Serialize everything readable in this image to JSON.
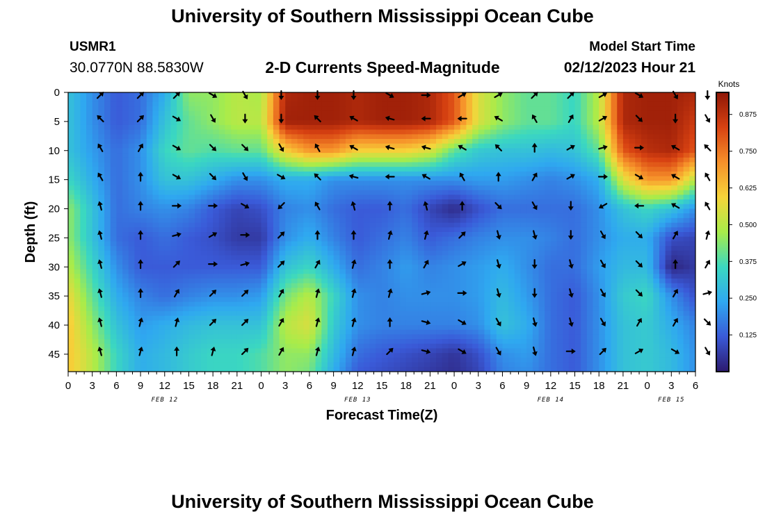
{
  "page": {
    "title": "University of Southern Mississippi Ocean Cube",
    "footer_title": "University of Southern Mississippi Ocean Cube",
    "station_id": "USMR1",
    "station_coords": "30.0770N  88.5830W",
    "subtitle": "2-D Currents Speed-Magnitude",
    "model_start_label": "Model Start Time",
    "model_start_value": "02/12/2023 Hour 21"
  },
  "chart_data": {
    "type": "heatmap",
    "title": "2-D Currents Speed-Magnitude",
    "xlabel": "Forecast Time(Z)",
    "ylabel": "Depth (ft)",
    "colorbar_label": "Knots",
    "x_tick_labels": [
      "0",
      "3",
      "6",
      "9",
      "12",
      "15",
      "18",
      "21",
      "0",
      "3",
      "6",
      "9",
      "12",
      "15",
      "18",
      "21",
      "0",
      "3",
      "6",
      "9",
      "12",
      "15",
      "18",
      "21",
      "0",
      "3",
      "6"
    ],
    "date_labels": [
      {
        "label": "FEB 12",
        "x": 12
      },
      {
        "label": "FEB 13",
        "x": 36
      },
      {
        "label": "FEB 14",
        "x": 60
      },
      {
        "label": "FEB 15",
        "x": 75
      }
    ],
    "y_ticks": [
      0,
      5,
      10,
      15,
      20,
      25,
      30,
      35,
      40,
      45
    ],
    "ylim": [
      48,
      0
    ],
    "xlim": [
      0,
      78
    ],
    "colorbar_ticks": [
      0.125,
      0.25,
      0.375,
      0.5,
      0.625,
      0.75,
      0.875
    ],
    "colorbar_range": [
      0,
      0.95
    ],
    "colors": [
      "#2c1a6e",
      "#3a5ad8",
      "#2fa8f0",
      "#3bd8c0",
      "#a8ec4a",
      "#f6d43a",
      "#f6902a",
      "#d84212",
      "#8e1606"
    ],
    "arrow_times": [
      4,
      9,
      13.5,
      18,
      22,
      26.5,
      31,
      35.5,
      40,
      44.5,
      49,
      53.5,
      58,
      62.5,
      66.5,
      71,
      75.5,
      79.5
    ],
    "arrow_depths": [
      0,
      4.5,
      9.5,
      14.5,
      19.5,
      24.5,
      29.5,
      34.5,
      39.5,
      44.5
    ],
    "cell_times": [
      0,
      3,
      6,
      9,
      12,
      15,
      18,
      21,
      24,
      27,
      30,
      33,
      36,
      39,
      42,
      45,
      48,
      51,
      54,
      57,
      60,
      63,
      66,
      69,
      72,
      75,
      78
    ],
    "cell_depths": [
      0,
      5,
      10,
      15,
      20,
      25,
      30,
      35,
      40,
      45,
      48
    ],
    "speed": [
      [
        0.3,
        0.2,
        0.12,
        0.15,
        0.25,
        0.45,
        0.45,
        0.5,
        0.48,
        0.9,
        0.92,
        0.92,
        0.9,
        0.92,
        0.92,
        0.9,
        0.8,
        0.55,
        0.45,
        0.4,
        0.4,
        0.35,
        0.5,
        0.9,
        0.92,
        0.92,
        0.9
      ],
      [
        0.3,
        0.2,
        0.12,
        0.15,
        0.3,
        0.4,
        0.45,
        0.5,
        0.5,
        0.92,
        0.92,
        0.92,
        0.9,
        0.92,
        0.92,
        0.9,
        0.8,
        0.55,
        0.45,
        0.4,
        0.4,
        0.35,
        0.5,
        0.9,
        0.92,
        0.92,
        0.85
      ],
      [
        0.3,
        0.22,
        0.15,
        0.2,
        0.35,
        0.4,
        0.38,
        0.4,
        0.4,
        0.6,
        0.7,
        0.7,
        0.6,
        0.6,
        0.6,
        0.55,
        0.4,
        0.32,
        0.3,
        0.3,
        0.28,
        0.3,
        0.4,
        0.8,
        0.88,
        0.9,
        0.8
      ],
      [
        0.35,
        0.25,
        0.15,
        0.2,
        0.3,
        0.3,
        0.25,
        0.2,
        0.2,
        0.25,
        0.25,
        0.2,
        0.2,
        0.2,
        0.2,
        0.2,
        0.2,
        0.22,
        0.22,
        0.2,
        0.18,
        0.2,
        0.25,
        0.55,
        0.7,
        0.7,
        0.5
      ],
      [
        0.45,
        0.3,
        0.15,
        0.18,
        0.2,
        0.18,
        0.12,
        0.08,
        0.1,
        0.18,
        0.2,
        0.15,
        0.12,
        0.12,
        0.15,
        0.08,
        0.03,
        0.1,
        0.15,
        0.15,
        0.15,
        0.15,
        0.2,
        0.3,
        0.35,
        0.3,
        0.2
      ],
      [
        0.45,
        0.3,
        0.15,
        0.12,
        0.15,
        0.12,
        0.1,
        0.06,
        0.06,
        0.2,
        0.25,
        0.18,
        0.12,
        0.15,
        0.18,
        0.12,
        0.15,
        0.18,
        0.2,
        0.2,
        0.18,
        0.15,
        0.2,
        0.25,
        0.25,
        0.1,
        0.08
      ],
      [
        0.5,
        0.35,
        0.2,
        0.12,
        0.12,
        0.12,
        0.12,
        0.12,
        0.12,
        0.3,
        0.35,
        0.25,
        0.15,
        0.18,
        0.22,
        0.18,
        0.2,
        0.22,
        0.25,
        0.2,
        0.15,
        0.15,
        0.22,
        0.28,
        0.28,
        0.02,
        0.06
      ],
      [
        0.58,
        0.4,
        0.25,
        0.18,
        0.15,
        0.18,
        0.2,
        0.2,
        0.22,
        0.42,
        0.5,
        0.35,
        0.2,
        0.18,
        0.2,
        0.2,
        0.2,
        0.22,
        0.28,
        0.22,
        0.15,
        0.12,
        0.2,
        0.32,
        0.35,
        0.2,
        0.1
      ],
      [
        0.62,
        0.45,
        0.3,
        0.22,
        0.25,
        0.28,
        0.3,
        0.3,
        0.3,
        0.5,
        0.55,
        0.32,
        0.2,
        0.18,
        0.18,
        0.18,
        0.18,
        0.2,
        0.3,
        0.25,
        0.15,
        0.12,
        0.2,
        0.3,
        0.32,
        0.25,
        0.18
      ],
      [
        0.62,
        0.5,
        0.35,
        0.25,
        0.28,
        0.32,
        0.35,
        0.35,
        0.38,
        0.45,
        0.45,
        0.28,
        0.15,
        0.12,
        0.1,
        0.08,
        0.05,
        0.1,
        0.2,
        0.22,
        0.15,
        0.12,
        0.2,
        0.3,
        0.32,
        0.28,
        0.2
      ],
      [
        0.62,
        0.5,
        0.35,
        0.25,
        0.28,
        0.32,
        0.35,
        0.35,
        0.38,
        0.45,
        0.42,
        0.25,
        0.12,
        0.1,
        0.08,
        0.06,
        0.04,
        0.08,
        0.18,
        0.2,
        0.15,
        0.12,
        0.2,
        0.3,
        0.32,
        0.28,
        0.2
      ]
    ],
    "arrow_directions_deg": [
      [
        45,
        45,
        45,
        120,
        150,
        180,
        180,
        180,
        120,
        90,
        60,
        60,
        45,
        45,
        60,
        120,
        150,
        180
      ],
      [
        315,
        45,
        120,
        150,
        180,
        180,
        315,
        300,
        285,
        270,
        270,
        300,
        330,
        30,
        60,
        135,
        180,
        150
      ],
      [
        330,
        30,
        120,
        135,
        135,
        150,
        330,
        300,
        285,
        285,
        300,
        315,
        0,
        60,
        75,
        90,
        300,
        315
      ],
      [
        330,
        0,
        120,
        135,
        150,
        120,
        315,
        285,
        270,
        300,
        330,
        0,
        30,
        60,
        90,
        120,
        300,
        330
      ],
      [
        345,
        0,
        90,
        90,
        120,
        225,
        330,
        345,
        0,
        345,
        0,
        135,
        150,
        180,
        240,
        270,
        300,
        330
      ],
      [
        345,
        0,
        75,
        60,
        90,
        45,
        0,
        0,
        15,
        15,
        45,
        165,
        165,
        180,
        150,
        135,
        30,
        15
      ],
      [
        345,
        0,
        45,
        90,
        75,
        45,
        30,
        15,
        0,
        30,
        60,
        165,
        180,
        165,
        150,
        135,
        0,
        30
      ],
      [
        345,
        0,
        30,
        45,
        45,
        30,
        15,
        15,
        15,
        75,
        90,
        165,
        180,
        165,
        150,
        135,
        30,
        75
      ],
      [
        345,
        15,
        15,
        45,
        45,
        30,
        15,
        15,
        0,
        105,
        120,
        150,
        165,
        165,
        150,
        30,
        30,
        135
      ],
      [
        345,
        15,
        0,
        15,
        45,
        30,
        15,
        15,
        45,
        105,
        120,
        150,
        165,
        90,
        45,
        60,
        120,
        150
      ]
    ]
  }
}
